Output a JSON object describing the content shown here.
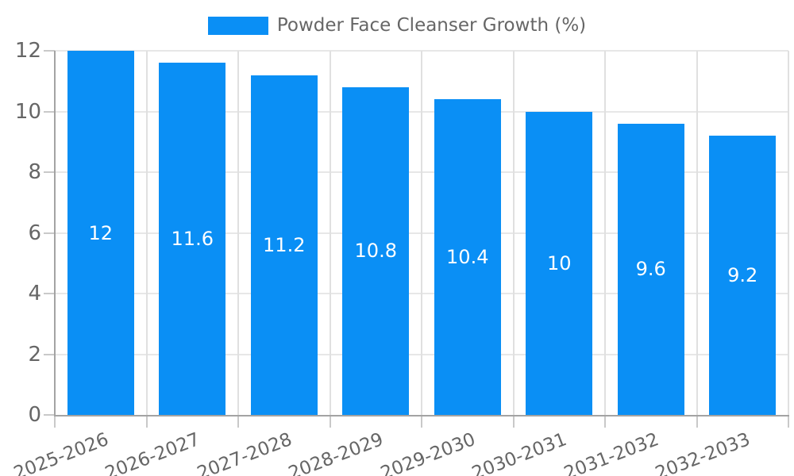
{
  "legend": {
    "label": "Powder Face Cleanser Growth (%)"
  },
  "chart_data": {
    "type": "bar",
    "title": "Powder Face Cleanser Growth (%)",
    "categories": [
      "2025-2026",
      "2026-2027",
      "2027-2028",
      "2028-2029",
      "2029-2030",
      "2030-2031",
      "2031-2032",
      "2032-2033"
    ],
    "values": [
      12,
      11.6,
      11.2,
      10.8,
      10.4,
      10,
      9.6,
      9.2
    ],
    "value_labels": [
      "12",
      "11.6",
      "11.2",
      "10.8",
      "10.4",
      "10",
      "9.6",
      "9.2"
    ],
    "xlabel": "",
    "ylabel": "",
    "ylim": [
      0,
      12
    ],
    "y_ticks": [
      0,
      2,
      4,
      6,
      8,
      10,
      12
    ],
    "y_tick_labels": [
      "0",
      "2",
      "4",
      "6",
      "8",
      "10",
      "12"
    ],
    "grid": true,
    "legend_position": "top-center",
    "x_label_rotation_deg": -21,
    "colors": {
      "bar": "#0a8ff5",
      "value_label": "#ffffff",
      "axis_text": "#666666",
      "grid_line": "#e7e7e7",
      "axis_line": "#a3a3a3",
      "tick_mark": "#c9c9c9",
      "background": "#ffffff"
    }
  }
}
